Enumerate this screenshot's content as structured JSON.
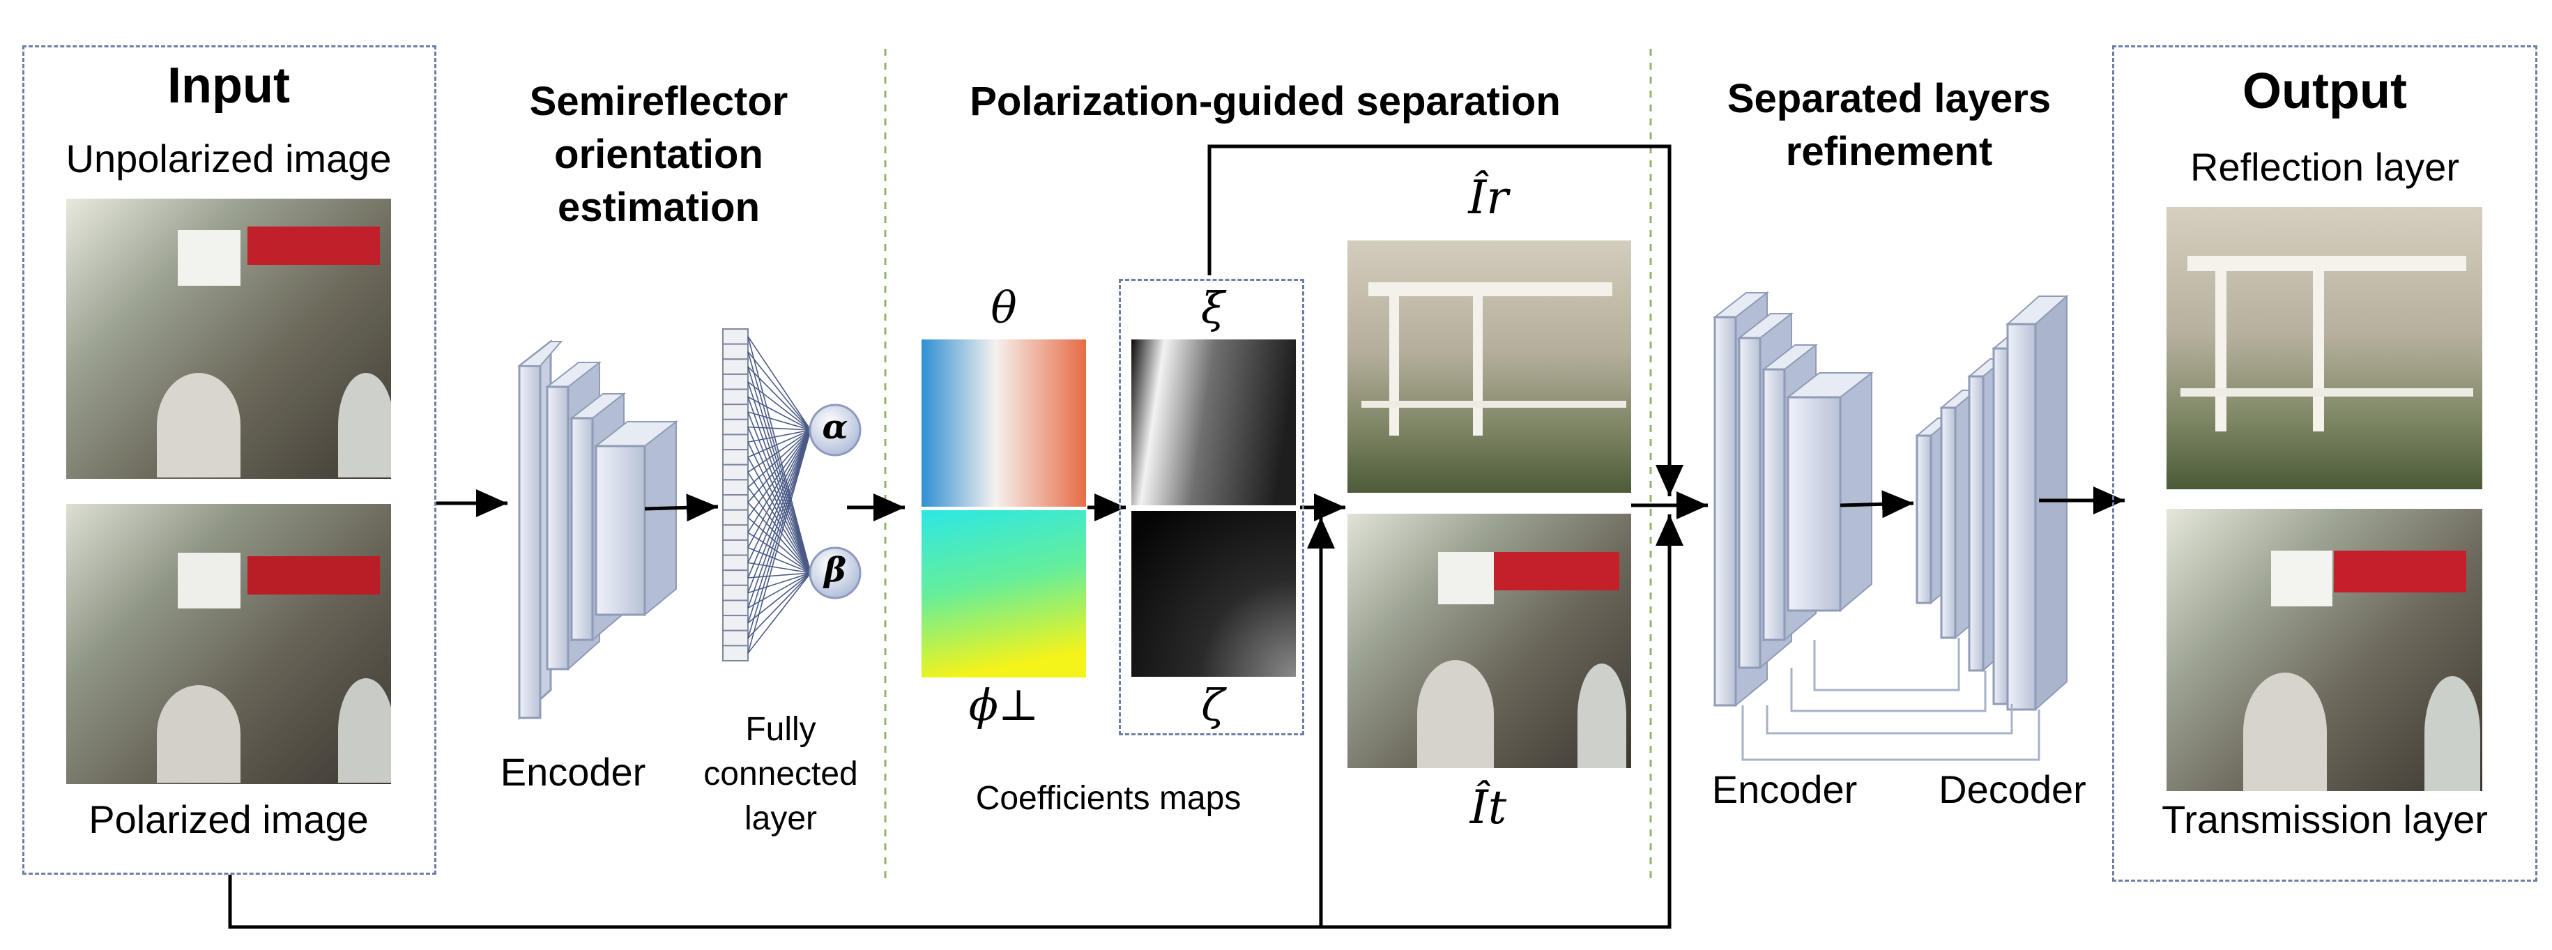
{
  "input": {
    "title": "Input",
    "unpolarized_label": "Unpolarized image",
    "polarized_label": "Polarized image"
  },
  "orientation": {
    "title_line1": "Semireflector",
    "title_line2": "orientation",
    "title_line3": "estimation",
    "encoder_label": "Encoder",
    "fc_line1": "Fully",
    "fc_line2": "connected",
    "fc_line3": "layer",
    "alpha": "α",
    "beta": "β"
  },
  "separation": {
    "title": "Polarization-guided separation",
    "theta": "θ",
    "phi": "ϕ⊥",
    "xi": "ξ",
    "zeta": "ζ",
    "coeff_label": "Coefficients maps",
    "ir": "Îr",
    "it": "Ît"
  },
  "refinement": {
    "title_line1": "Separated layers",
    "title_line2": "refinement",
    "encoder_label": "Encoder",
    "decoder_label": "Decoder"
  },
  "output": {
    "title": "Output",
    "reflection_label": "Reflection layer",
    "transmission_label": "Transmission layer"
  },
  "colors": {
    "dashed_box": "#6b7ea3",
    "divider": "#8fb46a",
    "layer_face": "#d9deea",
    "theta_left": "#2e8fd6",
    "theta_right": "#e8704a",
    "phi_top": "#2ee8e0",
    "phi_bottom": "#f2f21a"
  }
}
